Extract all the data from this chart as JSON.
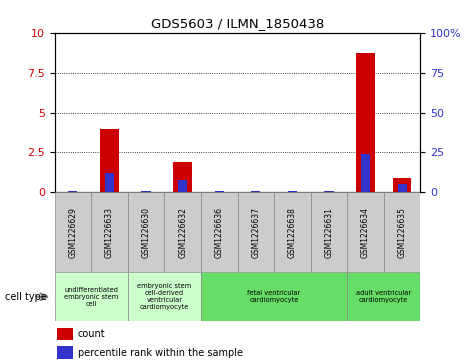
{
  "title": "GDS5603 / ILMN_1850438",
  "samples": [
    "GSM1226629",
    "GSM1226633",
    "GSM1226630",
    "GSM1226632",
    "GSM1226636",
    "GSM1226637",
    "GSM1226638",
    "GSM1226631",
    "GSM1226634",
    "GSM1226635"
  ],
  "count_values": [
    0.02,
    4.0,
    0.02,
    1.9,
    0.02,
    0.02,
    0.02,
    0.02,
    8.7,
    0.9
  ],
  "percentile_values": [
    1,
    12,
    1,
    8,
    1,
    1,
    1,
    1,
    24,
    5
  ],
  "ylim_left": [
    0,
    10
  ],
  "ylim_right": [
    0,
    100
  ],
  "yticks_left": [
    0,
    2.5,
    5,
    7.5,
    10
  ],
  "yticks_right": [
    0,
    25,
    50,
    75,
    100
  ],
  "ytick_labels_right": [
    "0",
    "25",
    "50",
    "75",
    "100%"
  ],
  "bar_color_red": "#CC0000",
  "bar_color_blue": "#3333CC",
  "cell_type_groups": [
    {
      "label": "undifferentiated\nembryonic stem\ncell",
      "indices": [
        0,
        1
      ],
      "color": "#ccffcc"
    },
    {
      "label": "embryonic stem\ncell-derived\nventricular\ncardiomyocyte",
      "indices": [
        2,
        3
      ],
      "color": "#ccffcc"
    },
    {
      "label": "fetal ventricular\ncardiomyocyte",
      "indices": [
        4,
        5,
        6,
        7
      ],
      "color": "#66dd66"
    },
    {
      "label": "adult ventricular\ncardiomyocyte",
      "indices": [
        8,
        9
      ],
      "color": "#66dd66"
    }
  ],
  "cell_type_label": "cell type",
  "legend_count": "count",
  "legend_percentile": "percentile rank within the sample",
  "background_color": "#ffffff",
  "plot_bg_color": "#ffffff",
  "tick_label_color_left": "#CC0000",
  "tick_label_color_right": "#3333CC",
  "grid_color": "#000000",
  "sample_bg_color": "#cccccc"
}
